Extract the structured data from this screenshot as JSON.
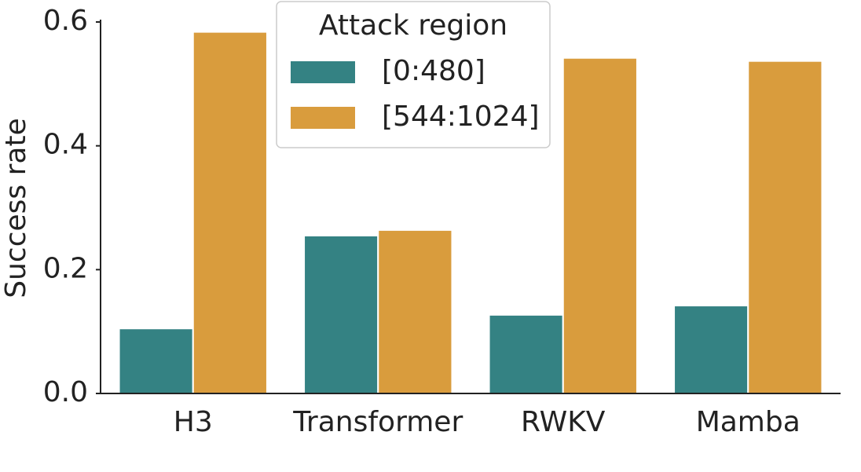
{
  "chart_data": {
    "type": "bar",
    "y_label": "Success rate",
    "categories": [
      "H3",
      "Transformer",
      "RWKV",
      "Mamba"
    ],
    "series": [
      {
        "name": "[0:480]",
        "color": "#348283",
        "values": [
          0.105,
          0.255,
          0.127,
          0.142
        ]
      },
      {
        "name": "[544:1024]",
        "color": "#d99c3d",
        "values": [
          0.584,
          0.264,
          0.542,
          0.537
        ]
      }
    ],
    "ylim": [
      0,
      0.6
    ],
    "yticks": [
      {
        "value": 0,
        "label": "0.0"
      },
      0.2,
      0.4,
      0.6
    ],
    "legend_title": "Attack region",
    "legend_position": "top-center"
  }
}
